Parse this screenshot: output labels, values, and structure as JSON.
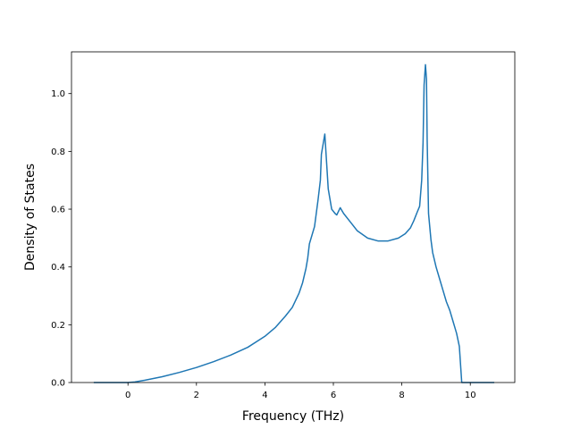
{
  "chart_data": {
    "type": "line",
    "xlabel": "Frequency (THz)",
    "ylabel": "Density of States",
    "xlim": [
      -1.65,
      11.3
    ],
    "ylim": [
      0.0,
      1.1445
    ],
    "xticks": [
      0,
      2,
      4,
      6,
      8,
      10
    ],
    "yticks": [
      0.0,
      0.2,
      0.4,
      0.6,
      0.8,
      1.0
    ],
    "xtick_labels": [
      "0",
      "2",
      "4",
      "6",
      "8",
      "10"
    ],
    "ytick_labels": [
      "0.0",
      "0.2",
      "0.4",
      "0.6",
      "0.8",
      "1.0"
    ],
    "grid": false,
    "line_color": "#1f77b4",
    "series": [
      {
        "x": [
          -1.0,
          -0.5,
          0.0,
          0.2,
          0.5,
          1.0,
          1.5,
          2.0,
          2.5,
          3.0,
          3.5,
          4.0,
          4.3,
          4.6,
          4.8,
          5.0,
          5.1,
          5.2,
          5.25,
          5.3,
          5.45,
          5.55,
          5.62,
          5.65,
          5.75,
          5.85,
          5.95,
          6.05,
          6.1,
          6.2,
          6.3,
          6.5,
          6.7,
          7.0,
          7.3,
          7.6,
          7.9,
          8.1,
          8.25,
          8.35,
          8.45,
          8.52,
          8.58,
          8.62,
          8.65,
          8.69,
          8.72,
          8.74,
          8.78,
          8.85,
          8.9,
          9.0,
          9.1,
          9.2,
          9.3,
          9.4,
          9.5,
          9.6,
          9.68,
          9.75,
          10.0,
          10.3,
          10.7
        ],
        "y": [
          0.0,
          0.0,
          0.0,
          0.002,
          0.008,
          0.02,
          0.035,
          0.052,
          0.072,
          0.095,
          0.122,
          0.16,
          0.19,
          0.23,
          0.26,
          0.31,
          0.345,
          0.395,
          0.43,
          0.48,
          0.54,
          0.63,
          0.7,
          0.79,
          0.86,
          0.67,
          0.6,
          0.585,
          0.58,
          0.605,
          0.585,
          0.555,
          0.525,
          0.5,
          0.49,
          0.49,
          0.5,
          0.515,
          0.535,
          0.56,
          0.59,
          0.61,
          0.7,
          0.83,
          1.03,
          1.1,
          1.05,
          0.84,
          0.585,
          0.495,
          0.45,
          0.4,
          0.36,
          0.32,
          0.28,
          0.25,
          0.21,
          0.17,
          0.125,
          0.0,
          0.0,
          0.0,
          0.0
        ]
      }
    ]
  }
}
